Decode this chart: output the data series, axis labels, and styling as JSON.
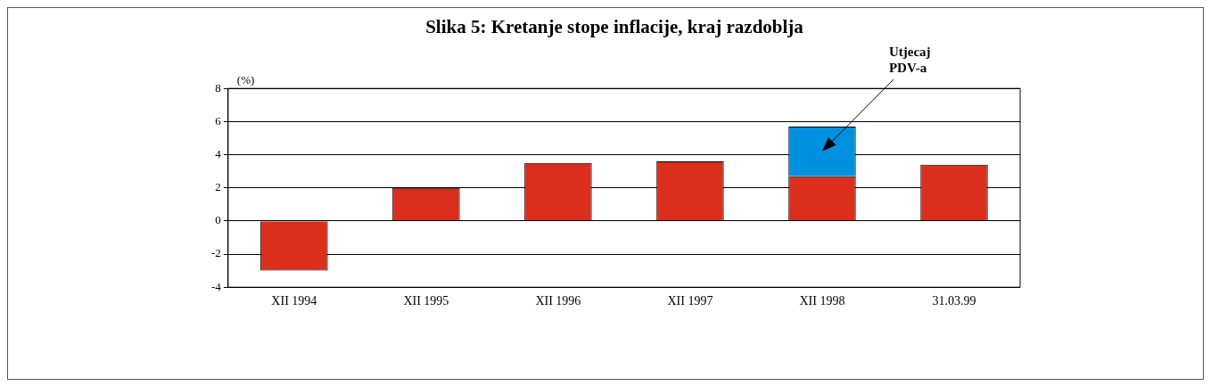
{
  "chart_data": {
    "type": "bar",
    "title": "Slika 5: Kretanje stope inflacije, kraj razdoblja",
    "ylabel": "(%)",
    "categories": [
      "XII 1994",
      "XII 1995",
      "XII 1996",
      "XII 1997",
      "XII 1998",
      "31.03.99"
    ],
    "stacked": true,
    "series": [
      {
        "color": "#dc2e1c",
        "values": [
          -3.0,
          2.0,
          3.5,
          3.6,
          2.7,
          3.4
        ]
      },
      {
        "color": "#0090e0",
        "values": [
          null,
          null,
          null,
          null,
          3.0,
          null
        ]
      }
    ],
    "ylim": [
      -4,
      8
    ],
    "yticks": [
      -4,
      -2,
      0,
      2,
      4,
      6,
      8
    ],
    "grid": "y",
    "legend": false,
    "annotations": [
      "Utjecaj\nPDV-a"
    ]
  }
}
